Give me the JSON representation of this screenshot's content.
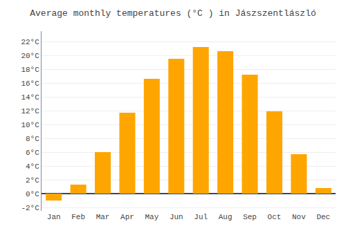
{
  "chart_data": {
    "type": "bar",
    "title": "Average monthly temperatures (°C ) in Jászszentlászló",
    "categories": [
      "Jan",
      "Feb",
      "Mar",
      "Apr",
      "May",
      "Jun",
      "Jul",
      "Aug",
      "Sep",
      "Oct",
      "Nov",
      "Dec"
    ],
    "values": [
      -1.0,
      1.3,
      6.0,
      11.7,
      16.6,
      19.5,
      21.2,
      20.6,
      17.2,
      11.9,
      5.7,
      0.8
    ],
    "color": "#FFA500",
    "ylim": [
      -2.5,
      23.5
    ],
    "yticks": [
      {
        "value": -2,
        "label": "-2°C"
      },
      {
        "value": 0,
        "label": "0°C"
      },
      {
        "value": 2,
        "label": "2°C"
      },
      {
        "value": 4,
        "label": "4°C"
      },
      {
        "value": 6,
        "label": "6°C"
      },
      {
        "value": 8,
        "label": "8°C"
      },
      {
        "value": 10,
        "label": "10°C"
      },
      {
        "value": 12,
        "label": "12°C"
      },
      {
        "value": 14,
        "label": "14°C"
      },
      {
        "value": 16,
        "label": "16°C"
      },
      {
        "value": 18,
        "label": "18°C"
      },
      {
        "value": 20,
        "label": "20°C"
      },
      {
        "value": 22,
        "label": "22°C"
      }
    ],
    "grid": true
  }
}
